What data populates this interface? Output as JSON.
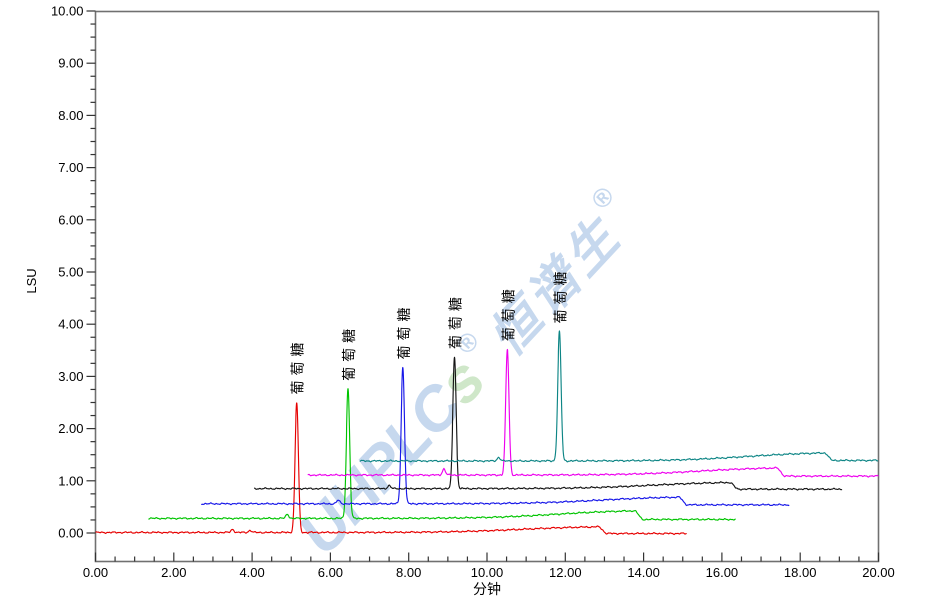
{
  "chart_data": {
    "type": "line",
    "title": "",
    "xlabel": "分钟",
    "ylabel": "LSU",
    "xlim": [
      0,
      20
    ],
    "ylim": [
      -0.55,
      10
    ],
    "grid": "off",
    "legend": "none",
    "x_major_ticks": [
      0,
      2,
      4,
      6,
      8,
      10,
      12,
      14,
      16,
      18,
      20
    ],
    "x_tick_labels": [
      "0.00",
      "2.00",
      "4.00",
      "6.00",
      "8.00",
      "10.00",
      "12.00",
      "14.00",
      "16.00",
      "18.00",
      "20.00"
    ],
    "x_minor_step": 0.5,
    "y_major_ticks": [
      0,
      1,
      2,
      3,
      4,
      5,
      6,
      7,
      8,
      9,
      10
    ],
    "y_tick_labels": [
      "0.00",
      "1.00",
      "2.00",
      "3.00",
      "4.00",
      "5.00",
      "6.00",
      "7.00",
      "8.00",
      "9.00",
      "10.00"
    ],
    "y_minor_step": 0.25,
    "peak_label": "葡萄糖",
    "series": [
      {
        "name": "injection-1-red",
        "color": "#e60000",
        "t_start": 0.0,
        "t_end": 15.1,
        "baseline": 0.01,
        "bumps": [
          {
            "t": 3.5,
            "h": 0.06
          },
          {
            "t": 3.95,
            "h": 0.04
          }
        ],
        "peak": {
          "t_min": 5.14,
          "apex_lsu": 2.5
        },
        "hump": {
          "height": 0.12,
          "step_t": 12.85,
          "after_delta": -0.02
        }
      },
      {
        "name": "injection-2-green",
        "color": "#00c400",
        "t_start": 1.35,
        "t_end": 16.35,
        "baseline": 0.28,
        "bumps": [
          {
            "t": 4.9,
            "h": 0.08
          }
        ],
        "peak": {
          "t_min": 6.45,
          "apex_lsu": 2.76
        },
        "hump": {
          "height": 0.16,
          "step_t": 13.77,
          "after_delta": -0.02
        }
      },
      {
        "name": "injection-3-blue",
        "color": "#1717e8",
        "t_start": 2.7,
        "t_end": 17.72,
        "baseline": 0.56,
        "bumps": [
          {
            "t": 6.2,
            "h": 0.07
          }
        ],
        "peak": {
          "t_min": 7.85,
          "apex_lsu": 3.17
        },
        "hump": {
          "height": 0.14,
          "step_t": 14.9,
          "after_delta": -0.02
        }
      },
      {
        "name": "injection-4-black",
        "color": "#141414",
        "t_start": 4.05,
        "t_end": 19.08,
        "baseline": 0.85,
        "bumps": [
          {
            "t": 7.5,
            "h": 0.06
          }
        ],
        "peak": {
          "t_min": 9.17,
          "apex_lsu": 3.37
        },
        "hump": {
          "height": 0.13,
          "step_t": 16.2,
          "after_delta": -0.01
        }
      },
      {
        "name": "injection-5-magenta",
        "color": "#ee00ee",
        "t_start": 5.42,
        "t_end": 20.0,
        "baseline": 1.11,
        "bumps": [
          {
            "t": 8.9,
            "h": 0.12
          }
        ],
        "peak": {
          "t_min": 10.52,
          "apex_lsu": 3.52
        },
        "hump": {
          "height": 0.15,
          "step_t": 17.4,
          "after_delta": -0.02
        }
      },
      {
        "name": "injection-6-teal",
        "color": "#0d8585",
        "t_start": 6.75,
        "t_end": 20.0,
        "baseline": 1.38,
        "bumps": [
          {
            "t": 10.3,
            "h": 0.07
          }
        ],
        "peak": {
          "t_min": 11.85,
          "apex_lsu": 3.86
        },
        "hump": {
          "height": 0.17,
          "step_t": 18.62,
          "after_delta": 0.01
        }
      }
    ]
  },
  "watermark": {
    "latin": "UHPLC",
    "s": "s",
    "reg1": "®",
    "cjk": "恒谱生",
    "reg2": "®",
    "color_main": "#c6d8ee",
    "color_s": "#cfe7c9",
    "angle_deg": -47
  },
  "colors": {
    "axis_box": "#707070",
    "tick": "#333333",
    "text": "#000000",
    "background": "#ffffff"
  }
}
